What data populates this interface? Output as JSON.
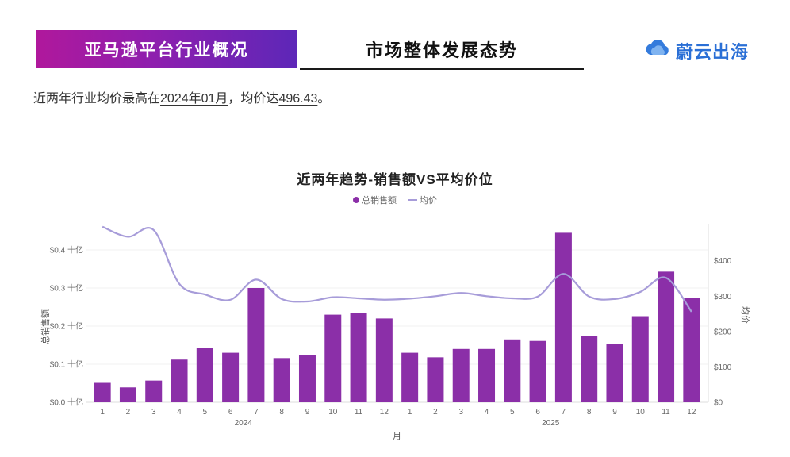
{
  "header": {
    "banner_label": "亚马逊平台行业概况",
    "page_title": "市场整体发展态势",
    "logo_text": "蔚云出海"
  },
  "summary": {
    "prefix": "近两年行业均价最高在",
    "highlight_date": "2024年01月",
    "middle": "，均价达",
    "highlight_value": "496.43",
    "suffix": "。"
  },
  "chart_data": {
    "type": "bar+line",
    "title": "近两年趋势-销售额VS平均价位",
    "xlabel": "月",
    "legend": [
      {
        "label": "总销售额",
        "type": "bar",
        "color": "#8b2fa8"
      },
      {
        "label": "均价",
        "type": "line",
        "color": "#a79cd9"
      }
    ],
    "x": [
      "1",
      "2",
      "3",
      "4",
      "5",
      "6",
      "7",
      "8",
      "9",
      "10",
      "11",
      "12",
      "1",
      "2",
      "3",
      "4",
      "5",
      "6",
      "7",
      "8",
      "9",
      "10",
      "11",
      "12"
    ],
    "year_groups": [
      "2024",
      "2025"
    ],
    "left_axis": {
      "label": "总销售额",
      "tick_values": [
        0,
        0.1,
        0.2,
        0.3,
        0.4
      ],
      "tick_labels": [
        "$0.0 十亿",
        "$0.1 十亿",
        "$0.2 十亿",
        "$0.3 十亿",
        "$0.4 十亿"
      ],
      "ylim": [
        0,
        0.45
      ]
    },
    "right_axis": {
      "label": "均价",
      "tick_values": [
        0,
        100,
        200,
        300,
        400
      ],
      "tick_labels": [
        "$0",
        "$100",
        "$200",
        "$300",
        "$400"
      ],
      "ylim": [
        0,
        500
      ]
    },
    "series": [
      {
        "name": "总销售额",
        "values": [
          0.051,
          0.039,
          0.057,
          0.112,
          0.143,
          0.13,
          0.3,
          0.116,
          0.124,
          0.23,
          0.235,
          0.22,
          0.13,
          0.118,
          0.14,
          0.14,
          0.165,
          0.161,
          0.445,
          0.175,
          0.153,
          0.226,
          0.343,
          0.275
        ]
      },
      {
        "name": "均价",
        "values": [
          496.43,
          468,
          487,
          335,
          305,
          290,
          347,
          292,
          285,
          297,
          294,
          290,
          293,
          300,
          309,
          300,
          294,
          299,
          363,
          299,
          292,
          312,
          352,
          256
        ]
      }
    ]
  }
}
